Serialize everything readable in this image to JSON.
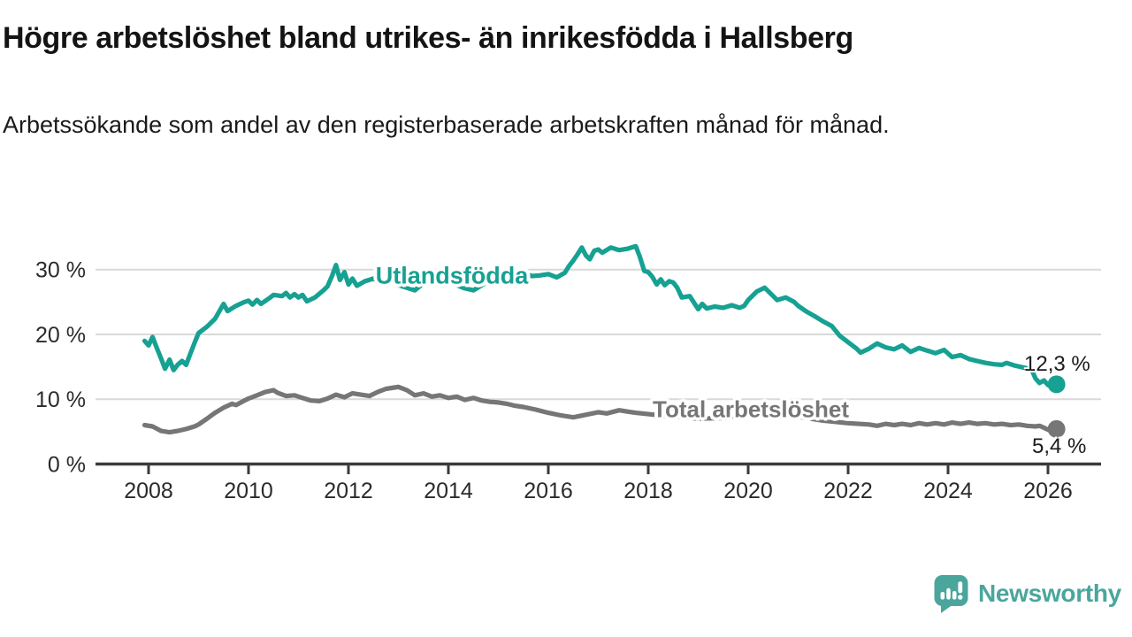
{
  "header": {
    "title": "Högre arbetslöshet bland utrikes- än inrikesfödda i Hallsberg",
    "subtitle": "Arbetssökande som andel av den registerbaserade arbetskraften månad för månad."
  },
  "colors": {
    "accent_teal": "#16a192",
    "series_gray": "#767676",
    "axis": "#3b3b3b",
    "axis_text": "#2b2b2b",
    "grid": "#d9d9d9",
    "logo": "#4aa69c",
    "end_label_text": "#1b1b1b"
  },
  "chart_data": {
    "type": "line",
    "title": "Högre arbetslöshet bland utrikes- än inrikesfödda i Hallsberg",
    "subtitle": "Arbetssökande som andel av den registerbaserade arbetskraften månad för månad.",
    "xlabel": "",
    "ylabel": "",
    "grid": "horizontal",
    "legend_position": "inline-labels",
    "xlim": [
      2007.8,
      2027.05
    ],
    "ylim": [
      0,
      35.5
    ],
    "x_ticks": [
      2008,
      2010,
      2012,
      2014,
      2016,
      2018,
      2020,
      2022,
      2024,
      2026
    ],
    "x_tick_labels": [
      "2008",
      "2010",
      "2012",
      "2014",
      "2016",
      "2018",
      "2020",
      "2022",
      "2024",
      "2026"
    ],
    "y_ticks": [
      0,
      10,
      20,
      30
    ],
    "y_tick_labels": [
      "0 %",
      "10 %",
      "20 %",
      "30 %"
    ],
    "series": [
      {
        "name": "Utlandsfödda",
        "color": "#16a192",
        "end_label": "12,3 %",
        "end_value": 12.3,
        "points": [
          [
            2007.92,
            19.0
          ],
          [
            2008.0,
            18.3
          ],
          [
            2008.08,
            19.6
          ],
          [
            2008.17,
            17.8
          ],
          [
            2008.25,
            16.3
          ],
          [
            2008.33,
            14.7
          ],
          [
            2008.42,
            16.1
          ],
          [
            2008.5,
            14.5
          ],
          [
            2008.58,
            15.3
          ],
          [
            2008.67,
            15.9
          ],
          [
            2008.75,
            15.3
          ],
          [
            2008.83,
            16.9
          ],
          [
            2008.92,
            18.7
          ],
          [
            2009.0,
            20.2
          ],
          [
            2009.17,
            21.2
          ],
          [
            2009.33,
            22.4
          ],
          [
            2009.5,
            24.7
          ],
          [
            2009.58,
            23.6
          ],
          [
            2009.75,
            24.4
          ],
          [
            2009.92,
            25.0
          ],
          [
            2010.0,
            25.2
          ],
          [
            2010.08,
            24.6
          ],
          [
            2010.17,
            25.3
          ],
          [
            2010.25,
            24.7
          ],
          [
            2010.42,
            25.6
          ],
          [
            2010.5,
            26.1
          ],
          [
            2010.67,
            25.9
          ],
          [
            2010.75,
            26.4
          ],
          [
            2010.83,
            25.7
          ],
          [
            2010.92,
            26.2
          ],
          [
            2011.0,
            25.7
          ],
          [
            2011.08,
            26.1
          ],
          [
            2011.17,
            25.1
          ],
          [
            2011.33,
            25.7
          ],
          [
            2011.5,
            26.8
          ],
          [
            2011.58,
            27.4
          ],
          [
            2011.67,
            29.0
          ],
          [
            2011.75,
            30.7
          ],
          [
            2011.83,
            28.4
          ],
          [
            2011.92,
            29.6
          ],
          [
            2012.0,
            27.7
          ],
          [
            2012.08,
            28.6
          ],
          [
            2012.17,
            27.5
          ],
          [
            2012.33,
            28.2
          ],
          [
            2012.5,
            28.6
          ],
          [
            2012.67,
            27.8
          ],
          [
            2012.83,
            28.3
          ],
          [
            2013.0,
            27.6
          ],
          [
            2013.17,
            27.2
          ],
          [
            2013.33,
            26.8
          ],
          [
            2013.5,
            27.9
          ],
          [
            2013.67,
            28.4
          ],
          [
            2013.83,
            27.8
          ],
          [
            2014.0,
            28.2
          ],
          [
            2014.17,
            27.6
          ],
          [
            2014.33,
            27.1
          ],
          [
            2014.5,
            26.8
          ],
          [
            2014.67,
            27.6
          ],
          [
            2014.83,
            28.3
          ],
          [
            2015.0,
            28.8
          ],
          [
            2015.17,
            28.4
          ],
          [
            2015.33,
            28.9
          ],
          [
            2015.5,
            29.4
          ],
          [
            2015.67,
            29.0
          ],
          [
            2015.83,
            29.1
          ],
          [
            2016.0,
            29.3
          ],
          [
            2016.17,
            28.8
          ],
          [
            2016.33,
            29.5
          ],
          [
            2016.42,
            30.6
          ],
          [
            2016.5,
            31.4
          ],
          [
            2016.58,
            32.3
          ],
          [
            2016.67,
            33.4
          ],
          [
            2016.75,
            32.2
          ],
          [
            2016.83,
            31.6
          ],
          [
            2016.92,
            32.9
          ],
          [
            2017.0,
            33.1
          ],
          [
            2017.08,
            32.6
          ],
          [
            2017.25,
            33.4
          ],
          [
            2017.42,
            33.0
          ],
          [
            2017.58,
            33.2
          ],
          [
            2017.75,
            33.6
          ],
          [
            2017.83,
            32.0
          ],
          [
            2017.92,
            29.8
          ],
          [
            2018.0,
            29.6
          ],
          [
            2018.08,
            28.9
          ],
          [
            2018.17,
            27.7
          ],
          [
            2018.25,
            28.5
          ],
          [
            2018.33,
            27.6
          ],
          [
            2018.42,
            28.2
          ],
          [
            2018.5,
            28.0
          ],
          [
            2018.58,
            27.2
          ],
          [
            2018.67,
            25.7
          ],
          [
            2018.83,
            25.9
          ],
          [
            2019.0,
            23.9
          ],
          [
            2019.08,
            24.7
          ],
          [
            2019.17,
            24.0
          ],
          [
            2019.33,
            24.3
          ],
          [
            2019.5,
            24.1
          ],
          [
            2019.67,
            24.5
          ],
          [
            2019.83,
            24.1
          ],
          [
            2019.92,
            24.4
          ],
          [
            2020.0,
            25.3
          ],
          [
            2020.17,
            26.6
          ],
          [
            2020.33,
            27.2
          ],
          [
            2020.5,
            25.9
          ],
          [
            2020.58,
            25.3
          ],
          [
            2020.75,
            25.7
          ],
          [
            2020.92,
            25.0
          ],
          [
            2021.0,
            24.4
          ],
          [
            2021.17,
            23.5
          ],
          [
            2021.33,
            22.8
          ],
          [
            2021.5,
            22.0
          ],
          [
            2021.67,
            21.3
          ],
          [
            2021.83,
            19.8
          ],
          [
            2022.0,
            18.8
          ],
          [
            2022.17,
            17.8
          ],
          [
            2022.25,
            17.2
          ],
          [
            2022.42,
            17.8
          ],
          [
            2022.58,
            18.6
          ],
          [
            2022.75,
            18.0
          ],
          [
            2022.92,
            17.7
          ],
          [
            2023.08,
            18.3
          ],
          [
            2023.25,
            17.3
          ],
          [
            2023.42,
            17.9
          ],
          [
            2023.58,
            17.5
          ],
          [
            2023.75,
            17.1
          ],
          [
            2023.92,
            17.6
          ],
          [
            2024.08,
            16.5
          ],
          [
            2024.25,
            16.8
          ],
          [
            2024.42,
            16.2
          ],
          [
            2024.58,
            15.9
          ],
          [
            2024.75,
            15.6
          ],
          [
            2024.92,
            15.4
          ],
          [
            2025.08,
            15.3
          ],
          [
            2025.17,
            15.6
          ],
          [
            2025.33,
            15.2
          ],
          [
            2025.5,
            14.9
          ],
          [
            2025.67,
            14.6
          ],
          [
            2025.75,
            13.2
          ],
          [
            2025.83,
            12.5
          ],
          [
            2025.92,
            12.9
          ],
          [
            2026.0,
            12.2
          ],
          [
            2026.08,
            12.6
          ],
          [
            2026.17,
            12.3
          ]
        ]
      },
      {
        "name": "Total arbetslöshet",
        "color": "#767676",
        "end_label": "5,4 %",
        "end_value": 5.4,
        "points": [
          [
            2007.92,
            6.0
          ],
          [
            2008.08,
            5.8
          ],
          [
            2008.25,
            5.1
          ],
          [
            2008.42,
            4.9
          ],
          [
            2008.58,
            5.1
          ],
          [
            2008.75,
            5.4
          ],
          [
            2008.92,
            5.8
          ],
          [
            2009.0,
            6.1
          ],
          [
            2009.17,
            7.0
          ],
          [
            2009.33,
            7.9
          ],
          [
            2009.5,
            8.7
          ],
          [
            2009.67,
            9.3
          ],
          [
            2009.75,
            9.1
          ],
          [
            2009.92,
            9.8
          ],
          [
            2010.0,
            10.1
          ],
          [
            2010.17,
            10.6
          ],
          [
            2010.33,
            11.1
          ],
          [
            2010.5,
            11.4
          ],
          [
            2010.58,
            11.0
          ],
          [
            2010.75,
            10.5
          ],
          [
            2010.92,
            10.6
          ],
          [
            2011.08,
            10.2
          ],
          [
            2011.25,
            9.8
          ],
          [
            2011.42,
            9.7
          ],
          [
            2011.58,
            10.1
          ],
          [
            2011.75,
            10.7
          ],
          [
            2011.92,
            10.3
          ],
          [
            2012.08,
            10.9
          ],
          [
            2012.25,
            10.7
          ],
          [
            2012.42,
            10.5
          ],
          [
            2012.58,
            11.1
          ],
          [
            2012.75,
            11.6
          ],
          [
            2012.92,
            11.8
          ],
          [
            2013.0,
            11.9
          ],
          [
            2013.17,
            11.4
          ],
          [
            2013.33,
            10.6
          ],
          [
            2013.5,
            10.9
          ],
          [
            2013.67,
            10.4
          ],
          [
            2013.83,
            10.6
          ],
          [
            2014.0,
            10.2
          ],
          [
            2014.17,
            10.4
          ],
          [
            2014.33,
            9.9
          ],
          [
            2014.5,
            10.2
          ],
          [
            2014.67,
            9.8
          ],
          [
            2014.83,
            9.6
          ],
          [
            2015.0,
            9.5
          ],
          [
            2015.17,
            9.3
          ],
          [
            2015.33,
            9.0
          ],
          [
            2015.5,
            8.8
          ],
          [
            2015.75,
            8.4
          ],
          [
            2016.0,
            7.9
          ],
          [
            2016.25,
            7.5
          ],
          [
            2016.5,
            7.2
          ],
          [
            2016.75,
            7.6
          ],
          [
            2017.0,
            8.0
          ],
          [
            2017.17,
            7.8
          ],
          [
            2017.42,
            8.3
          ],
          [
            2017.58,
            8.1
          ],
          [
            2017.75,
            7.9
          ],
          [
            2018.0,
            7.7
          ],
          [
            2018.25,
            7.5
          ],
          [
            2018.5,
            7.3
          ],
          [
            2019.0,
            7.0
          ],
          [
            2019.5,
            7.1
          ],
          [
            2020.0,
            7.6
          ],
          [
            2020.25,
            8.3
          ],
          [
            2020.5,
            8.0
          ],
          [
            2021.0,
            7.3
          ],
          [
            2021.5,
            6.7
          ],
          [
            2022.0,
            6.3
          ],
          [
            2022.42,
            6.1
          ],
          [
            2022.58,
            5.9
          ],
          [
            2022.75,
            6.2
          ],
          [
            2022.92,
            6.0
          ],
          [
            2023.08,
            6.2
          ],
          [
            2023.25,
            6.0
          ],
          [
            2023.42,
            6.3
          ],
          [
            2023.58,
            6.1
          ],
          [
            2023.75,
            6.3
          ],
          [
            2023.92,
            6.1
          ],
          [
            2024.08,
            6.4
          ],
          [
            2024.25,
            6.2
          ],
          [
            2024.42,
            6.4
          ],
          [
            2024.58,
            6.2
          ],
          [
            2024.75,
            6.3
          ],
          [
            2024.92,
            6.1
          ],
          [
            2025.08,
            6.2
          ],
          [
            2025.25,
            6.0
          ],
          [
            2025.42,
            6.1
          ],
          [
            2025.58,
            5.9
          ],
          [
            2025.75,
            5.8
          ],
          [
            2025.83,
            5.9
          ],
          [
            2025.92,
            5.6
          ],
          [
            2026.0,
            5.3
          ],
          [
            2026.08,
            5.6
          ],
          [
            2026.17,
            5.4
          ]
        ]
      }
    ]
  },
  "footer": {
    "brand": "Newsworthy"
  }
}
